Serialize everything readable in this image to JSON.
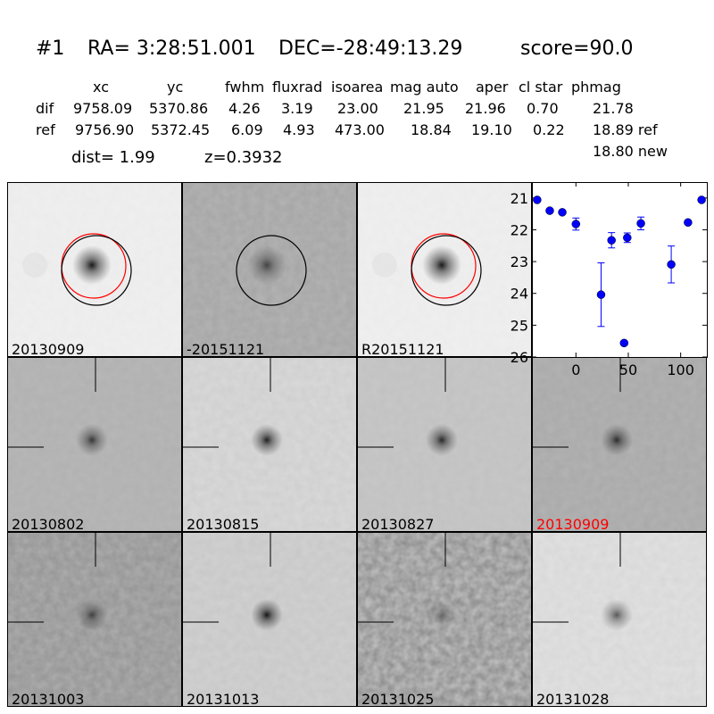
{
  "header": {
    "id": "#1",
    "ra": "RA= 3:28:51.001",
    "dec": "DEC=-28:49:13.29",
    "score": "score=90.0",
    "columns": [
      "xc",
      "yc",
      "fwhm",
      "fluxrad",
      "isoarea",
      "mag auto",
      "aper",
      "cl star",
      "phmag"
    ],
    "rows": [
      {
        "label": "dif",
        "values": [
          "9758.09",
          "5370.86",
          "4.26",
          "3.19",
          "23.00",
          "21.95",
          "21.96",
          "0.70",
          "21.78"
        ]
      },
      {
        "label": "ref",
        "values": [
          "9756.90",
          "5372.45",
          "6.09",
          "4.93",
          "473.00",
          "18.84",
          "19.10",
          "0.22",
          "18.89 ref"
        ]
      }
    ],
    "new_mag": "18.80 new",
    "dist": "dist=  1.99",
    "z": "z=0.3932"
  },
  "cells": [
    {
      "label": "20130909",
      "bg": "#f0f0f0",
      "noise": 0.05,
      "blob": 0.9,
      "circles": true,
      "cross": false
    },
    {
      "label": "-20151121",
      "bg": "#a4a4a4",
      "noise": 0.35,
      "blob": 0.6,
      "circles": "black",
      "cross": false
    },
    {
      "label": "R20151121",
      "bg": "#f0f0f0",
      "noise": 0.05,
      "blob": 0.9,
      "circles": true,
      "cross": false
    },
    null,
    {
      "label": "20130802",
      "bg": "#b0b0b0",
      "noise": 0.35,
      "blob": 0.7,
      "cross": true
    },
    {
      "label": "20130815",
      "bg": "#dadada",
      "noise": 0.2,
      "blob": 0.85,
      "cross": true
    },
    {
      "label": "20130827",
      "bg": "#c8c8c8",
      "noise": 0.3,
      "blob": 0.8,
      "cross": true
    },
    {
      "label": "20130909",
      "bg": "#a8a8a8",
      "noise": 0.3,
      "blob": 0.75,
      "cross": true,
      "label_color": "#ff0000"
    },
    {
      "label": "20131003",
      "bg": "#929292",
      "noise": 0.35,
      "blob": 0.6,
      "cross": true
    },
    {
      "label": "20131013",
      "bg": "#d2d2d2",
      "noise": 0.25,
      "blob": 0.9,
      "cross": true
    },
    {
      "label": "20131025",
      "bg": "#858585",
      "noise": 0.6,
      "blob": 0.3,
      "cross": true
    },
    {
      "label": "20131028",
      "bg": "#e2e2e2",
      "noise": 0.15,
      "blob": 0.6,
      "cross": true
    }
  ],
  "chart_data": {
    "type": "scatter",
    "xlim": [
      -42,
      125
    ],
    "ylim": [
      26,
      20.5
    ],
    "y_inverted": true,
    "xticks": [
      0,
      50,
      100
    ],
    "yticks": [
      21,
      22,
      23,
      24,
      25,
      26
    ],
    "color": "#0000ff",
    "x": [
      -37,
      -25,
      -13,
      0,
      24,
      34,
      46,
      49,
      62,
      91,
      107,
      120
    ],
    "y": [
      21.06,
      21.4,
      21.45,
      21.82,
      24.04,
      22.33,
      25.56,
      22.25,
      21.8,
      23.09,
      21.77,
      21.06
    ],
    "yerr": [
      0.03,
      0.03,
      0.03,
      0.19,
      1.0,
      0.24,
      0.06,
      0.15,
      0.2,
      0.58,
      0.05,
      0.03
    ]
  }
}
